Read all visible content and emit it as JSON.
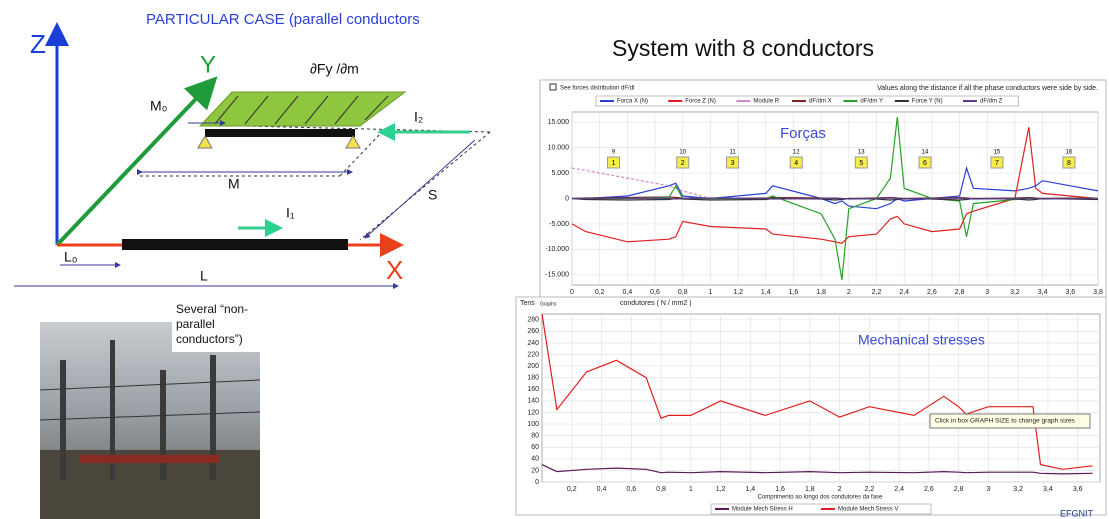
{
  "diagram": {
    "title": "PARTICULAR CASE  (parallel conductors",
    "z": "Z",
    "y": "Y",
    "x": "X",
    "m0": "M₀",
    "m": "M",
    "l0": "L₀",
    "l": "L",
    "s": "S",
    "i1": "I₁",
    "i2": "I₂",
    "load": "∂Fy /∂m"
  },
  "photo_caption": [
    "Several “non-",
    "parallel",
    "conductors”)"
  ],
  "heading": "System with 8 conductors",
  "footer": "EFGNIT",
  "chart_data": [
    {
      "type": "line",
      "checkbox": "See forces distribution dF/dl",
      "note": "Values along the distance if all the phase conductors were side by side.",
      "annotation": "Forças",
      "grid": true,
      "legend": "top",
      "xlim": [
        0,
        3.8
      ],
      "ylim": [
        -17000,
        17000
      ],
      "yticks": [
        {
          "value": 15000,
          "label": "15.000"
        },
        {
          "value": 10000,
          "label": "10.000"
        },
        {
          "value": 5000,
          "label": "5.000"
        },
        0,
        {
          "value": -5000,
          "label": "-5.000"
        },
        {
          "value": -10000,
          "label": "-10.000"
        },
        {
          "value": -15000,
          "label": "-15.000"
        }
      ],
      "xticks": [
        0,
        {
          "value": 0.2,
          "label": "0,2"
        },
        {
          "value": 0.4,
          "label": "0,4"
        },
        {
          "value": 0.6,
          "label": "0,6"
        },
        {
          "value": 0.8,
          "label": "0,8"
        },
        1,
        {
          "value": 1.2,
          "label": "1,2"
        },
        {
          "value": 1.4,
          "label": "1,4"
        },
        {
          "value": 1.6,
          "label": "1,6"
        },
        {
          "value": 1.8,
          "label": "1,8"
        },
        2,
        {
          "value": 2.2,
          "label": "2,2"
        },
        {
          "value": 2.4,
          "label": "2,4"
        },
        {
          "value": 2.6,
          "label": "2,6"
        },
        {
          "value": 2.8,
          "label": "2,8"
        },
        3,
        {
          "value": 3.2,
          "label": "3,2"
        },
        {
          "value": 3.4,
          "label": "3,4"
        },
        {
          "value": 3.6,
          "label": "3,6"
        },
        {
          "value": 3.8,
          "label": "3,8"
        }
      ],
      "x": [
        0,
        0.1,
        0.4,
        0.7,
        0.75,
        0.8,
        1.0,
        1.4,
        1.45,
        1.8,
        1.9,
        1.95,
        2.0,
        2.2,
        2.3,
        2.35,
        2.4,
        2.6,
        2.8,
        2.85,
        2.9,
        3.2,
        3.3,
        3.35,
        3.4,
        3.6,
        3.8
      ],
      "series": [
        {
          "name": "Forca X (N)",
          "color": "#2a3fd6",
          "values": [
            0,
            0,
            500,
            2500,
            3000,
            500,
            0,
            1000,
            2500,
            0,
            -1000,
            -500,
            -1500,
            -2000,
            -1000,
            0,
            -500,
            0,
            500,
            6000,
            2000,
            1500,
            2000,
            2500,
            3500,
            2500,
            1500
          ]
        },
        {
          "name": "Force Z (N)",
          "color": "#e02020",
          "values": [
            -5000,
            -6500,
            -8500,
            -8000,
            -7500,
            -4500,
            -5500,
            -6000,
            -7000,
            -8000,
            -8500,
            -8800,
            -7500,
            -7000,
            -4000,
            -3500,
            -5000,
            -6500,
            -6000,
            -3000,
            -2500,
            0,
            14000,
            2000,
            1000,
            500,
            0
          ]
        },
        {
          "name": "Module R",
          "color": "#d58ac8",
          "dash": true,
          "values": [
            6000,
            5500,
            4000,
            2500,
            2000,
            1500,
            0,
            0,
            0,
            0,
            0,
            0,
            0,
            0,
            0,
            0,
            0,
            0,
            0,
            0,
            0,
            0,
            0,
            0,
            0,
            0,
            0
          ]
        },
        {
          "name": "dF/dm X",
          "color": "#7a2a20",
          "values": [
            0,
            100,
            200,
            300,
            200,
            100,
            0,
            100,
            200,
            100,
            0,
            -100,
            0,
            100,
            200,
            100,
            0,
            100,
            200,
            100,
            0,
            100,
            200,
            100,
            0,
            100,
            0
          ]
        },
        {
          "name": "dF/dm Y",
          "color": "#2aa02a",
          "values": [
            0,
            0,
            0,
            200,
            2500,
            0,
            0,
            0,
            500,
            -3000,
            -8000,
            -16000,
            -2000,
            0,
            4000,
            16000,
            2000,
            0,
            -500,
            -7500,
            -1000,
            -200,
            0,
            0,
            0,
            0,
            0
          ]
        },
        {
          "name": "Force Y (N)",
          "color": "#333333",
          "values": [
            0,
            -200,
            -300,
            -200,
            0,
            -100,
            -300,
            -200,
            0,
            -100,
            -300,
            -200,
            0,
            -100,
            -300,
            -200,
            0,
            -100,
            -300,
            -200,
            0,
            -100,
            -300,
            -200,
            0,
            -100,
            -200
          ]
        },
        {
          "name": "dF/dm Z",
          "color": "#5a3a8a",
          "values": [
            0,
            0,
            100,
            0,
            -100,
            0,
            100,
            0,
            -100,
            0,
            100,
            0,
            -100,
            0,
            100,
            0,
            -100,
            0,
            100,
            0,
            -100,
            0,
            100,
            0,
            -100,
            0,
            0
          ]
        }
      ],
      "markers": [
        {
          "x": 0.3,
          "label": "1",
          "top": "9"
        },
        {
          "x": 0.8,
          "label": "2",
          "top": "10"
        },
        {
          "x": 1.16,
          "label": "3",
          "top": "11"
        },
        {
          "x": 1.62,
          "label": "4",
          "top": "12"
        },
        {
          "x": 2.09,
          "label": "5",
          "top": "13"
        },
        {
          "x": 2.55,
          "label": "6",
          "top": "14"
        },
        {
          "x": 3.07,
          "label": "7",
          "top": "15"
        },
        {
          "x": 3.59,
          "label": "8",
          "top": "16"
        }
      ]
    },
    {
      "type": "line",
      "subtitle": "Tens",
      "tab": "Graphs",
      "caption": "condutores ( N / mm2 )",
      "annotation": "Mechanical stresses",
      "tooltip": "Click in box GRAPH SIZE to change graph sizes",
      "xlabel": "Comprimento ao longo dos condutores da fase",
      "grid": true,
      "legend": "bottom",
      "xlim": [
        0,
        3.75
      ],
      "ylim": [
        0,
        290
      ],
      "yticks": [
        0,
        20,
        40,
        60,
        80,
        100,
        120,
        140,
        160,
        180,
        200,
        220,
        240,
        260,
        280
      ],
      "xticks": [
        {
          "value": 0.2,
          "label": "0,2"
        },
        {
          "value": 0.4,
          "label": "0,4"
        },
        {
          "value": 0.6,
          "label": "0,6"
        },
        {
          "value": 0.8,
          "label": "0,8"
        },
        1,
        {
          "value": 1.2,
          "label": "1,2"
        },
        {
          "value": 1.4,
          "label": "1,4"
        },
        {
          "value": 1.6,
          "label": "1,6"
        },
        {
          "value": 1.8,
          "label": "1,8"
        },
        2,
        {
          "value": 2.2,
          "label": "2,2"
        },
        {
          "value": 2.4,
          "label": "2,4"
        },
        {
          "value": 2.6,
          "label": "2,6"
        },
        {
          "value": 2.8,
          "label": "2,8"
        },
        3,
        {
          "value": 3.2,
          "label": "3,2"
        },
        {
          "value": 3.4,
          "label": "3,4"
        },
        {
          "value": 3.6,
          "label": "3,6"
        }
      ],
      "x": [
        0,
        0.1,
        0.3,
        0.5,
        0.7,
        0.8,
        0.85,
        1.0,
        1.2,
        1.5,
        1.8,
        2.0,
        2.2,
        2.5,
        2.7,
        2.8,
        2.85,
        3.0,
        3.3,
        3.35,
        3.5,
        3.7
      ],
      "series": [
        {
          "name": "Module Mech Stress H",
          "color": "#5a1a5a",
          "values": [
            30,
            18,
            22,
            24,
            22,
            16,
            17,
            16,
            18,
            16,
            18,
            16,
            17,
            16,
            18,
            17,
            16,
            17,
            17,
            15,
            14,
            15
          ]
        },
        {
          "name": "Module Mech Stress V",
          "color": "#e02020",
          "values": [
            290,
            125,
            190,
            210,
            180,
            110,
            115,
            115,
            140,
            115,
            140,
            112,
            130,
            115,
            148,
            130,
            117,
            130,
            130,
            30,
            22,
            28
          ]
        }
      ]
    }
  ]
}
